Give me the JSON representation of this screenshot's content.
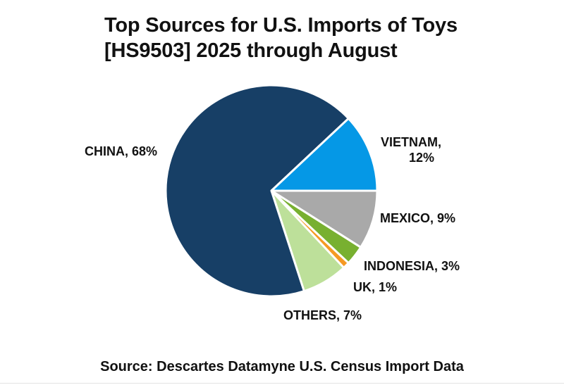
{
  "title_line1": "Top Sources for U.S. Imports of Toys",
  "title_line2": "[HS9503] 2025 through August",
  "source": "Source: Descartes Datamyne U.S. Census Import Data",
  "labels": {
    "china": "CHINA, 68%",
    "vietnam_1": "VIETNAM,",
    "vietnam_2": "12%",
    "mexico": "MEXICO, 9%",
    "indonesia": "INDONESIA, 3%",
    "uk": "UK, 1%",
    "others": "OTHERS, 7%"
  },
  "chart_data": {
    "type": "pie",
    "title": "Top Sources for U.S. Imports of Toys [HS9503] 2025 through August",
    "categories": [
      "CHINA",
      "VIETNAM",
      "MEXICO",
      "INDONESIA",
      "UK",
      "OTHERS"
    ],
    "values": [
      68,
      12,
      9,
      3,
      1,
      7
    ],
    "unit": "%",
    "colors": [
      "#173f66",
      "#0598e6",
      "#a9a9a9",
      "#78b030",
      "#f59a23",
      "#bde09a"
    ],
    "legend": "none (data labels)",
    "annotation": "Source: Descartes Datamyne U.S. Census Import Data"
  }
}
